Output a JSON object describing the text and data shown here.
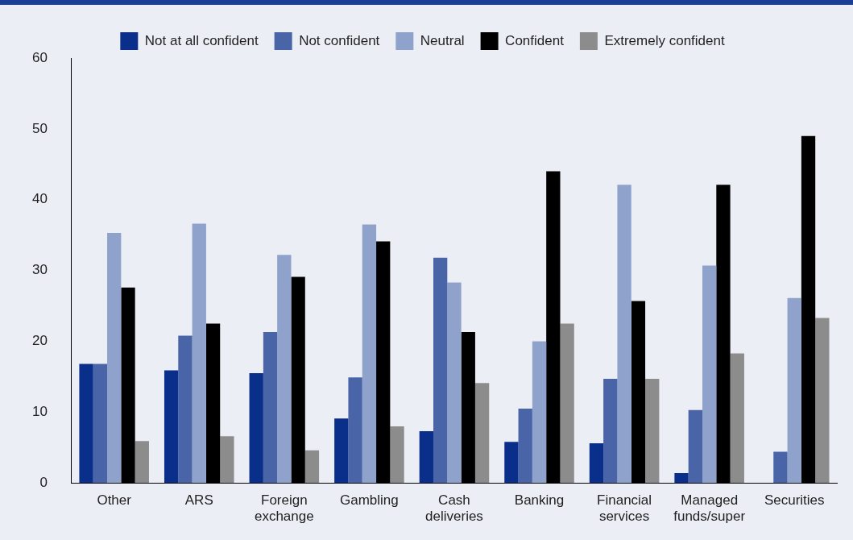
{
  "chart_data": {
    "type": "bar",
    "categories": [
      "Other",
      "ARS",
      "Foreign exchange",
      "Gambling",
      "Cash deliveries",
      "Banking",
      "Financial services",
      "Managed funds/super",
      "Securities"
    ],
    "series": [
      {
        "name": "Not at all confident",
        "color": "#0a2f8a",
        "values": [
          16.8,
          15.9,
          15.5,
          9.1,
          7.3,
          5.8,
          5.6,
          1.4,
          0
        ]
      },
      {
        "name": "Not confident",
        "color": "#4a64a8",
        "values": [
          16.8,
          20.8,
          21.3,
          14.9,
          31.8,
          10.5,
          14.7,
          10.3,
          4.4
        ]
      },
      {
        "name": "Neutral",
        "color": "#8fa2cc",
        "values": [
          35.3,
          36.6,
          32.2,
          36.5,
          28.3,
          20.0,
          42.1,
          30.7,
          26.1
        ]
      },
      {
        "name": "Confident",
        "color": "#000000",
        "values": [
          27.6,
          22.5,
          29.1,
          34.1,
          21.3,
          44.0,
          25.7,
          42.1,
          49.0
        ]
      },
      {
        "name": "Extremely confident",
        "color": "#8c8c8c",
        "values": [
          5.9,
          6.6,
          4.6,
          8.0,
          14.1,
          22.5,
          14.7,
          18.3,
          23.3
        ]
      }
    ],
    "ylim": [
      0,
      60
    ],
    "yticks": [
      0,
      10,
      20,
      30,
      40,
      50,
      60
    ],
    "grid": false,
    "legend": "top"
  }
}
